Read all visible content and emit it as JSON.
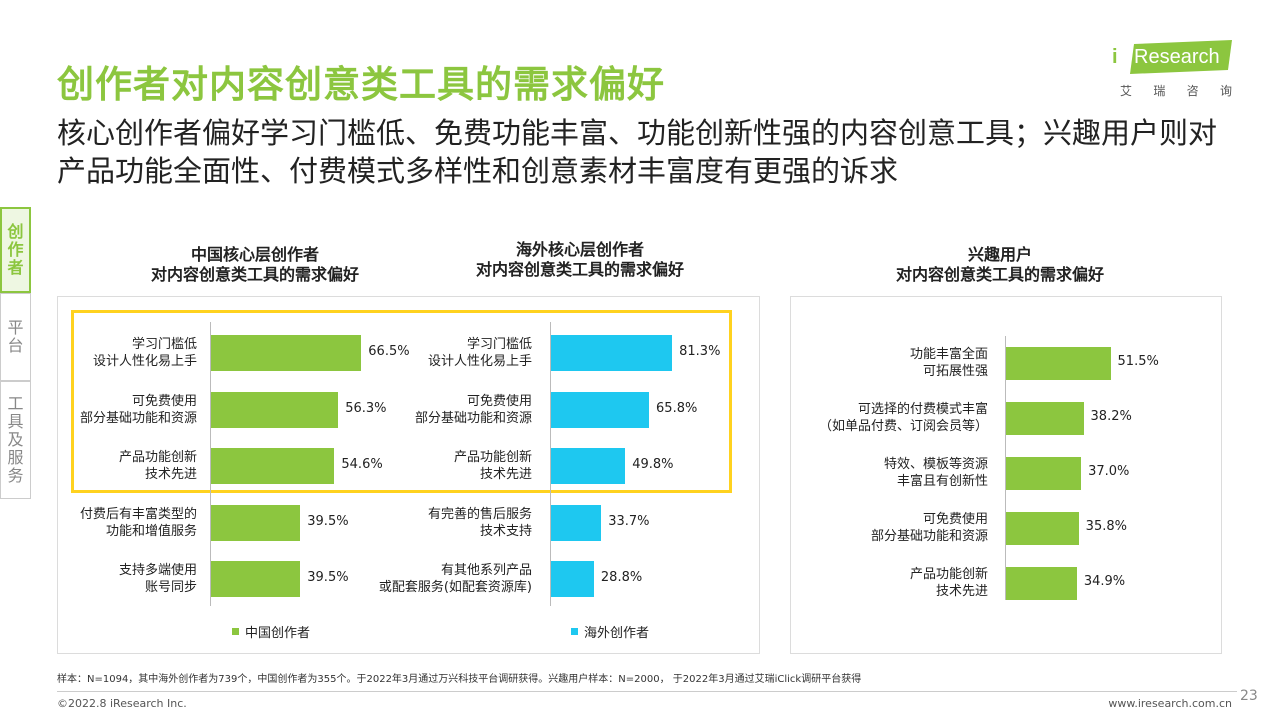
{
  "header": {
    "title": "创作者对内容创意类工具的需求偏好",
    "subtitle": "核心创作者偏好学习门槛低、免费功能丰富、功能创新性强的内容创意工具；兴趣用户则对产品功能全面性、付费模式多样性和创意素材丰富度有更强的诉求"
  },
  "logo": {
    "text": "Research",
    "i": "i",
    "cn": [
      "艾",
      "瑞",
      "咨",
      "询"
    ],
    "accent": "#8cc63f"
  },
  "side_tabs": [
    {
      "label": "创作者",
      "active": true
    },
    {
      "label": "平台",
      "active": false
    },
    {
      "label": "工具及服务",
      "active": false
    }
  ],
  "colors": {
    "green": "#8cc63f",
    "blue": "#1ec8f0",
    "highlight": "#ffd21f"
  },
  "chart_data": [
    {
      "type": "bar",
      "orientation": "horizontal",
      "title": "中国核心层创作者\n对内容创意类工具的需求偏好",
      "categories": [
        "学习门槛低\n设计人性化易上手",
        "可免费使用\n部分基础功能和资源",
        "产品功能创新\n技术先进",
        "付费后有丰富类型的\n功能和增值服务",
        "支持多端使用\n账号同步"
      ],
      "series": [
        {
          "name": "中国创作者",
          "values": [
            66.5,
            56.3,
            54.6,
            39.5,
            39.5
          ],
          "color": "#8cc63f"
        }
      ],
      "value_suffix": "%",
      "xlim": [
        0,
        100
      ],
      "legend": "bottom"
    },
    {
      "type": "bar",
      "orientation": "horizontal",
      "title": "海外核心层创作者\n对内容创意类工具的需求偏好",
      "categories": [
        "学习门槛低\n设计人性化易上手",
        "可免费使用\n部分基础功能和资源",
        "产品功能创新\n技术先进",
        "有完善的售后服务\n技术支持",
        "有其他系列产品\n或配套服务(如配套资源库)"
      ],
      "series": [
        {
          "name": "海外创作者",
          "values": [
            81.3,
            65.8,
            49.8,
            33.7,
            28.8
          ],
          "color": "#1ec8f0"
        }
      ],
      "value_suffix": "%",
      "xlim": [
        0,
        100
      ],
      "legend": "bottom"
    },
    {
      "type": "bar",
      "orientation": "horizontal",
      "title": "兴趣用户\n对内容创意类工具的需求偏好",
      "categories": [
        "功能丰富全面\n可拓展性强",
        "可选择的付费模式丰富\n（如单品付费、订阅会员等）",
        "特效、模板等资源\n丰富且有创新性",
        "可免费使用\n部分基础功能和资源",
        "产品功能创新\n技术先进"
      ],
      "series": [
        {
          "values": [
            51.5,
            38.2,
            37.0,
            35.8,
            34.9
          ],
          "color": "#8cc63f"
        }
      ],
      "value_suffix": "%",
      "xlim": [
        0,
        100
      ]
    }
  ],
  "footer": {
    "note": "样本：N=1094，其中海外创作者为739个，中国创作者为355个。于2022年3月通过万兴科技平台调研获得。兴趣用户样本：N=2000， 于2022年3月通过艾瑞iClick调研平台获得",
    "copyright": "©2022.8 iResearch Inc.",
    "website": "www.iresearch.com.cn",
    "page": "23"
  }
}
